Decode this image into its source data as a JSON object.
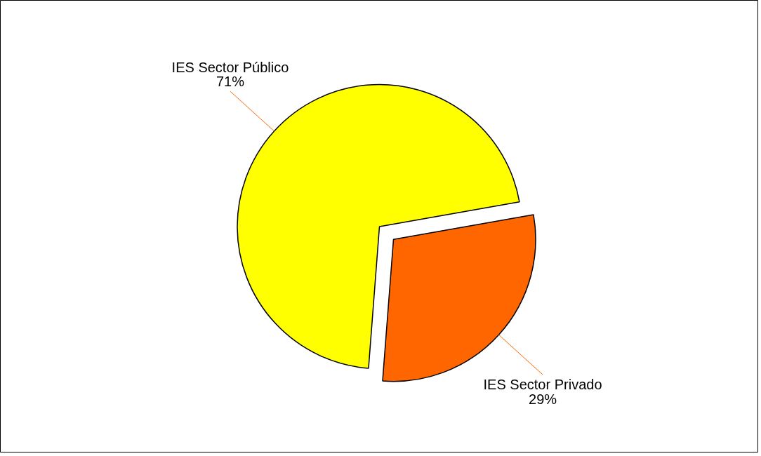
{
  "chart_data": {
    "type": "pie",
    "categories": [
      "IES Sector Público",
      "IES Sector Privado"
    ],
    "values": [
      71,
      29
    ],
    "colors": [
      "#ffff00",
      "#ff6600"
    ],
    "value_labels": [
      "71%",
      "29%"
    ]
  }
}
